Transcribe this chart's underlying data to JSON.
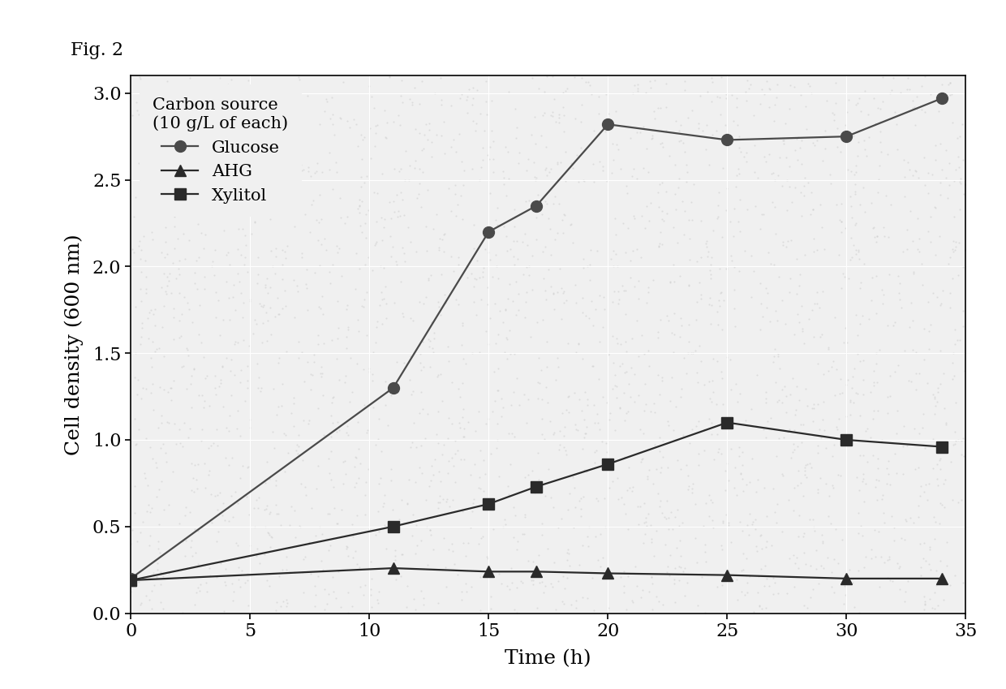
{
  "title": "Fig. 2",
  "xlabel": "Time (h)",
  "ylabel": "Cell density (600 nm)",
  "xlim": [
    0,
    35
  ],
  "ylim": [
    0.0,
    3.1
  ],
  "yticks": [
    0.0,
    0.5,
    1.0,
    1.5,
    2.0,
    2.5,
    3.0
  ],
  "xticks": [
    0,
    5,
    10,
    15,
    20,
    25,
    30,
    35
  ],
  "legend_title": "Carbon source\n(10 g/L of each)",
  "series": [
    {
      "label": "Glucose",
      "x": [
        0,
        11,
        15,
        17,
        20,
        25,
        30,
        34
      ],
      "y": [
        0.2,
        1.3,
        2.2,
        2.35,
        2.82,
        2.73,
        2.75,
        2.97
      ],
      "marker": "o",
      "color": "#4a4a4a",
      "markersize": 10,
      "linewidth": 1.6
    },
    {
      "label": "AHG",
      "x": [
        0,
        11,
        15,
        17,
        20,
        25,
        30,
        34
      ],
      "y": [
        0.19,
        0.26,
        0.24,
        0.24,
        0.23,
        0.22,
        0.2,
        0.2
      ],
      "marker": "^",
      "color": "#2a2a2a",
      "markersize": 10,
      "linewidth": 1.6
    },
    {
      "label": "Xylitol",
      "x": [
        0,
        11,
        15,
        17,
        20,
        25,
        30,
        34
      ],
      "y": [
        0.19,
        0.5,
        0.63,
        0.73,
        0.86,
        1.1,
        1.0,
        0.96
      ],
      "marker": "s",
      "color": "#2a2a2a",
      "markersize": 10,
      "linewidth": 1.6
    }
  ],
  "plot_bg_color": "#f0f0f0",
  "fig_bg_color": "#ffffff",
  "grid_color": "#ffffff"
}
